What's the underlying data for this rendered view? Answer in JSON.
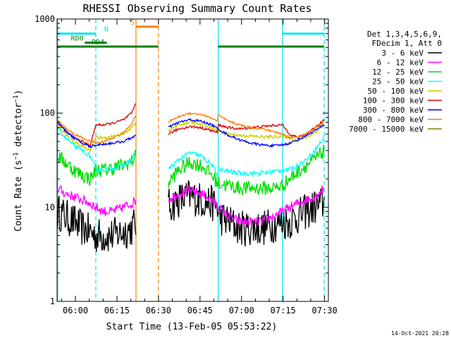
{
  "chart_data": {
    "type": "line",
    "title": "RHESSI Observing Summary Count Rates",
    "xlabel": "Start Time (13-Feb-05 05:53:22)",
    "ylabel": "Count Rate (s⁻¹ detector⁻¹)",
    "ylabel_parts": {
      "a": "Count Rate (s",
      "b": "−1",
      "c": " detector",
      "d": "−1",
      "e": ")"
    },
    "yscale": "log",
    "ylim": [
      1,
      1000
    ],
    "xlim_minutes": [
      0,
      98
    ],
    "x_ticks": [
      {
        "label": "06:00",
        "minutes": 6.63
      },
      {
        "label": "06:15",
        "minutes": 21.63
      },
      {
        "label": "06:30",
        "minutes": 36.63
      },
      {
        "label": "06:45",
        "minutes": 51.63
      },
      {
        "label": "07:00",
        "minutes": 66.63
      },
      {
        "label": "07:15",
        "minutes": 81.63
      },
      {
        "label": "07:30",
        "minutes": 96.63
      }
    ],
    "y_ticks": [
      {
        "label": "1",
        "value": 1
      },
      {
        "label": "10",
        "value": 10
      },
      {
        "label": "100",
        "value": 100
      },
      {
        "label": "1000",
        "value": 1000
      }
    ],
    "legend_header": [
      "Det 1,3,4,5,6,9,",
      "FDecim 1, Att 0"
    ],
    "legend_position": "right",
    "data_gaps_minutes": [
      [
        28.5,
        36.6
      ]
    ],
    "markers": {
      "vlines": [
        {
          "minutes": 0.2,
          "color": "#00e5ee",
          "style": "solid"
        },
        {
          "minutes": 14.0,
          "color": "#00e5ee",
          "style": "dashed"
        },
        {
          "minutes": 28.5,
          "color": "#ff7f00",
          "style": "solid"
        },
        {
          "minutes": 36.6,
          "color": "#ff7f00",
          "style": "dashed"
        },
        {
          "minutes": 58.2,
          "color": "#00e5ee",
          "style": "solid"
        },
        {
          "minutes": 81.4,
          "color": "#00e5ee",
          "style": "solid"
        },
        {
          "minutes": 96.5,
          "color": "#00e5ee",
          "style": "dashed"
        }
      ],
      "bars": [
        {
          "label": "N",
          "color": "#00e5ee",
          "y": 700,
          "segments": [
            [
              0,
              14.0
            ],
            [
              81.4,
              96.5
            ]
          ],
          "label_minutes": 17.0
        },
        {
          "label": "S",
          "color": "#ff7f00",
          "y": 830,
          "segments": [
            [
              28.5,
              36.6
            ]
          ],
          "label_minutes": 26.5
        },
        {
          "label": "RD0",
          "color": "#008000",
          "y": 560,
          "segments": [
            [
              10.0,
              18.0
            ]
          ],
          "label_minutes": 5.0
        },
        {
          "label": "RD4",
          "color": "#008000",
          "y": 510,
          "segments": [
            [
              0,
              36.6
            ],
            [
              58.2,
              81.4
            ],
            [
              81.4,
              96.5
            ]
          ],
          "label_minutes": 12.5
        }
      ]
    },
    "series": [
      {
        "name": "3 - 6 keV",
        "color": "#000000"
      },
      {
        "name": "6 - 12 keV",
        "color": "#ff00ff"
      },
      {
        "name": "12 - 25 keV",
        "color": "#00dd00"
      },
      {
        "name": "25 - 50 keV",
        "color": "#00ffff"
      },
      {
        "name": "50 - 100 keV",
        "color": "#cccc00"
      },
      {
        "name": "100 - 300 keV",
        "color": "#dd0000"
      },
      {
        "name": "300 - 800 keV",
        "color": "#0000ff"
      },
      {
        "name": "800 - 7000 keV",
        "color": "#ff7f00"
      },
      {
        "name": "7000 - 15000 keV",
        "color": "#808000"
      }
    ],
    "series_samples": {
      "minutes": [
        0.2,
        3,
        6,
        9,
        12,
        14,
        17,
        20,
        24,
        27,
        28.5,
        36.6,
        40,
        44,
        48,
        52,
        56,
        58,
        58.2,
        62,
        66,
        70,
        74,
        78,
        81.4,
        84,
        87,
        90,
        93,
        96.5
      ],
      "800 - 7000 keV": [
        85,
        70,
        60,
        55,
        50,
        48,
        50,
        54,
        62,
        78,
        95,
        null,
        80,
        92,
        100,
        97,
        88,
        82,
        95,
        82,
        75,
        70,
        68,
        64,
        60,
        55,
        56,
        60,
        68,
        80
      ],
      "100 - 300 keV": [
        80,
        65,
        55,
        50,
        45,
        75,
        75,
        78,
        85,
        100,
        130,
        null,
        60,
        68,
        72,
        70,
        65,
        62,
        75,
        70,
        68,
        70,
        72,
        74,
        75,
        60,
        55,
        60,
        70,
        85
      ],
      "300 - 800 keV": [
        80,
        65,
        55,
        48,
        44,
        46,
        47,
        48,
        50,
        55,
        58,
        null,
        70,
        80,
        85,
        82,
        75,
        68,
        68,
        58,
        52,
        48,
        46,
        45,
        46,
        48,
        52,
        58,
        65,
        75
      ],
      "50 - 100 keV": [
        75,
        60,
        50,
        45,
        40,
        55,
        55,
        56,
        60,
        70,
        80,
        null,
        65,
        75,
        80,
        76,
        70,
        65,
        65,
        60,
        58,
        57,
        56,
        56,
        57,
        55,
        52,
        55,
        62,
        75
      ],
      "25 - 50 keV": [
        70,
        55,
        45,
        40,
        35,
        25,
        25,
        26,
        28,
        32,
        40,
        null,
        25,
        32,
        38,
        35,
        28,
        22,
        25,
        24,
        23,
        23,
        23,
        24,
        25,
        25,
        28,
        32,
        40,
        55
      ],
      "12 - 25 keV": [
        35,
        30,
        25,
        22,
        20,
        25,
        25,
        26,
        28,
        31,
        35,
        null,
        18,
        25,
        30,
        28,
        22,
        18,
        18,
        17,
        16,
        16,
        16,
        16,
        17,
        20,
        24,
        28,
        32,
        40
      ],
      "6 - 12 keV": [
        16,
        14,
        13,
        12,
        11,
        10,
        9,
        9,
        10,
        11,
        12,
        null,
        12,
        14,
        15,
        14,
        12,
        10,
        10,
        8,
        7,
        7,
        7,
        8,
        9,
        10,
        11,
        12,
        13,
        16
      ],
      "3 - 6 keV": [
        9,
        8,
        7,
        6,
        5.5,
        5,
        5,
        5,
        5.5,
        6,
        7,
        null,
        10,
        12,
        13,
        12,
        11,
        10,
        8,
        7,
        6,
        6,
        6,
        6.5,
        7,
        7,
        8,
        9,
        10,
        11
      ]
    }
  },
  "footer_date": "14-Oct-2021 20:28"
}
